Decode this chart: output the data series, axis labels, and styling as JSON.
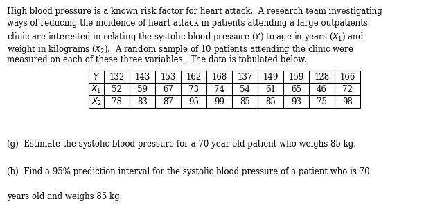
{
  "table_data": [
    [
      132,
      143,
      153,
      162,
      168,
      137,
      149,
      159,
      128,
      166
    ],
    [
      52,
      59,
      67,
      73,
      74,
      54,
      61,
      65,
      46,
      72
    ],
    [
      78,
      83,
      87,
      95,
      99,
      85,
      85,
      93,
      75,
      98
    ]
  ],
  "row_labels": [
    "Y",
    "X_1",
    "X_2"
  ],
  "bg_color": "#ffffff",
  "text_color": "#000000",
  "font_size": 8.5
}
